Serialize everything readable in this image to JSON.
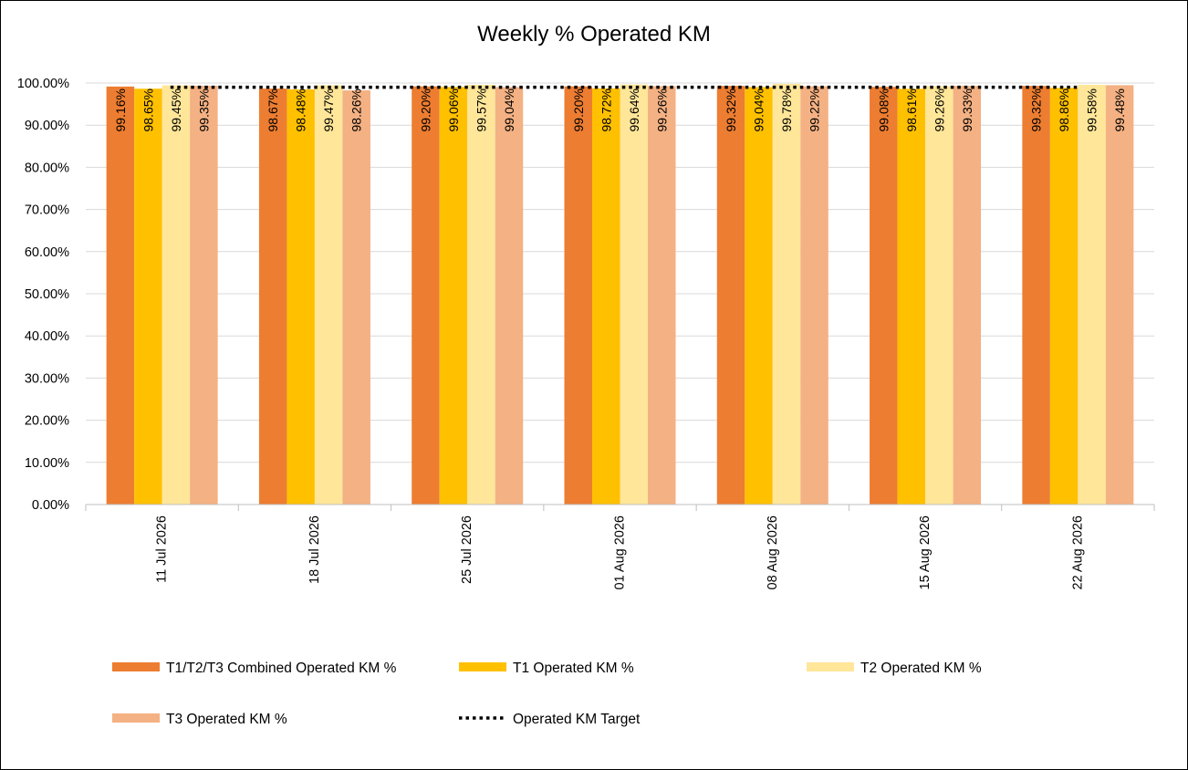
{
  "chart_data": {
    "type": "bar",
    "title": "Weekly % Operated KM",
    "xlabel": "",
    "ylabel": "",
    "ylim": [
      0,
      100
    ],
    "y_step": 10,
    "y_tick_format": "percent-2dp",
    "grid": true,
    "legend_position": "bottom",
    "categories": [
      "11 Jul 2026",
      "18 Jul 2026",
      "25 Jul 2026",
      "01 Aug 2026",
      "08 Aug 2026",
      "15 Aug 2026",
      "22 Aug 2026"
    ],
    "series": [
      {
        "name": "T1/T2/T3 Combined Operated KM %",
        "color": "#ED7D31",
        "values": [
          99.16,
          98.67,
          99.2,
          99.2,
          99.32,
          99.08,
          99.32
        ]
      },
      {
        "name": "T1 Operated KM %",
        "color": "#FFC000",
        "values": [
          98.65,
          98.48,
          99.06,
          98.72,
          99.04,
          98.61,
          98.86
        ]
      },
      {
        "name": "T2 Operated KM %",
        "color": "#FFE699",
        "values": [
          99.45,
          99.47,
          99.57,
          99.64,
          99.78,
          99.26,
          99.58
        ]
      },
      {
        "name": "T3 Operated KM %",
        "color": "#F4B183",
        "values": [
          99.35,
          98.26,
          99.04,
          99.26,
          99.22,
          99.33,
          99.48
        ]
      }
    ],
    "target_line": {
      "name": "Operated KM Target",
      "value": 99,
      "color": "#000000",
      "style": "dotted"
    }
  }
}
